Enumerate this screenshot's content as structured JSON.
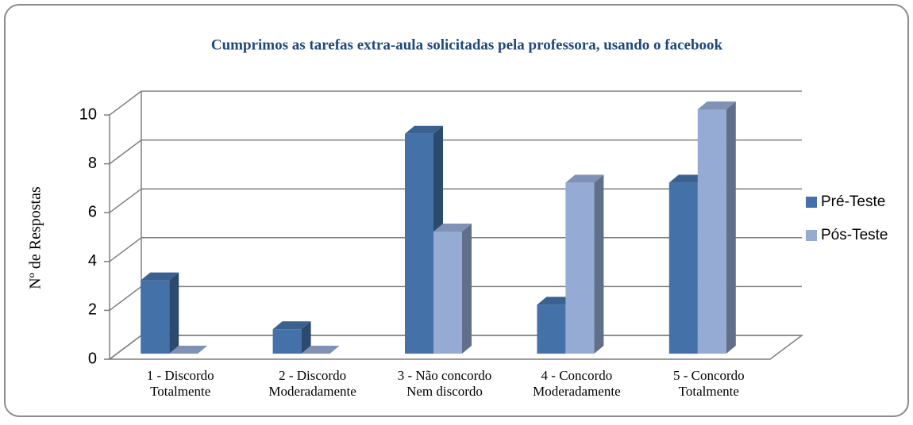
{
  "chart_data": {
    "type": "bar3d",
    "title": "Cumprimos  as tarefas extra-aula solicitadas pela professora, usando o facebook",
    "ylabel": "Nº de Respostas",
    "categories": [
      [
        "1 - Discordo",
        "Totalmente"
      ],
      [
        "2 - Discordo",
        "Moderadamente"
      ],
      [
        "3 - Não concordo",
        "Nem discordo"
      ],
      [
        "4 - Concordo",
        "Moderadamente"
      ],
      [
        "5 - Concordo",
        "Totalmente"
      ]
    ],
    "series": [
      {
        "name": "Pré-Teste",
        "color": "#4472a8",
        "values": [
          3,
          1,
          9,
          2,
          7
        ]
      },
      {
        "name": "Pós-Teste",
        "color": "#95abd4",
        "values": [
          0,
          0,
          5,
          7,
          10
        ]
      }
    ],
    "ylim": [
      0,
      10
    ],
    "yticks": [
      0,
      2,
      4,
      6,
      8,
      10
    ],
    "grid": true,
    "legend": "right"
  }
}
